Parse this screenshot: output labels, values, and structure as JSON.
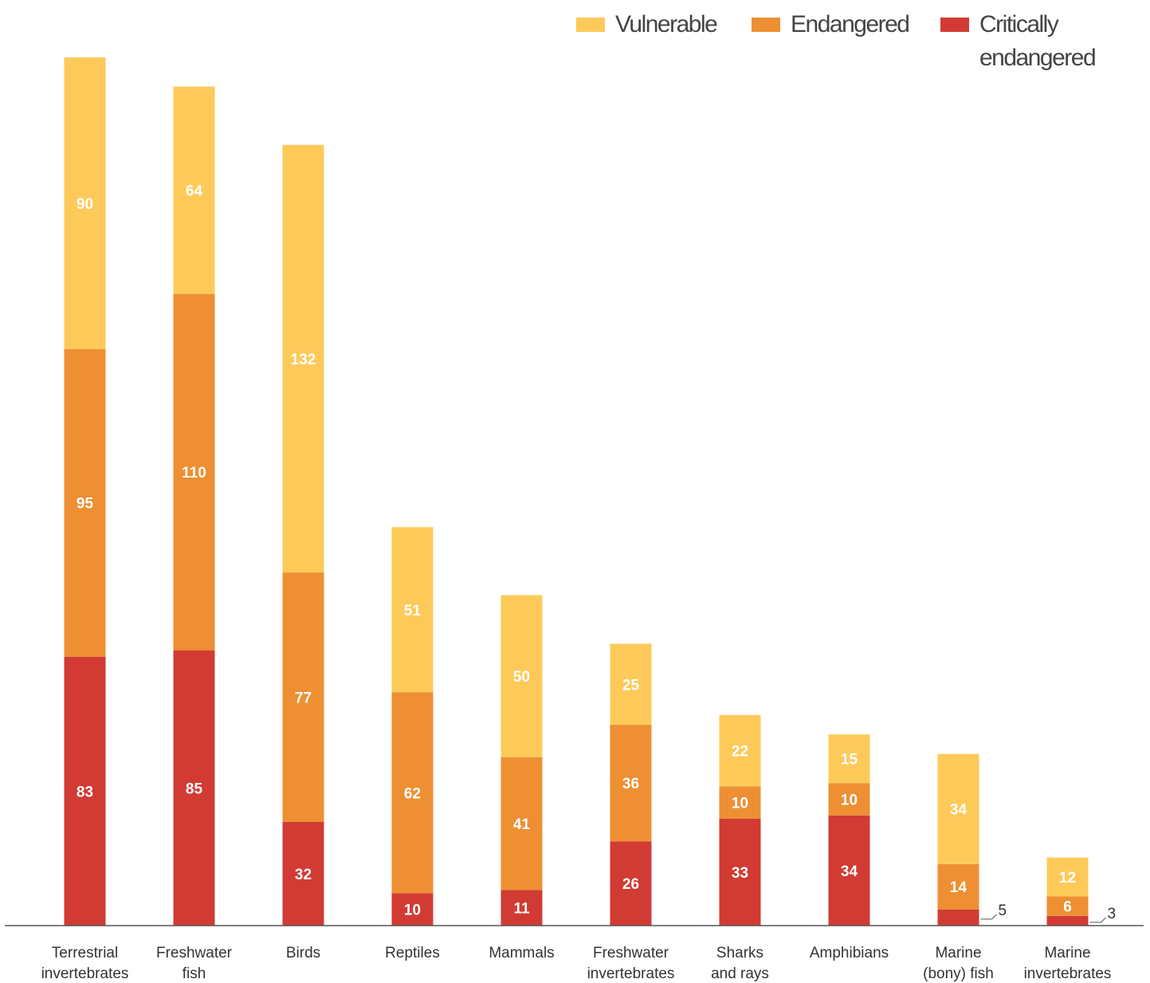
{
  "chart_data": {
    "type": "stacked-bar",
    "categories": [
      "Terrestrial\ninvertebrates",
      "Freshwater\nfish",
      "Birds",
      "Reptiles",
      "Mammals",
      "Freshwater\ninvertebrates",
      "Sharks\nand rays",
      "Amphibians",
      "Marine\n(bony) fish",
      "Marine\ninvertebrates"
    ],
    "series": [
      {
        "name": "Vulnerable",
        "color": "#fdca5a",
        "values": [
          90,
          64,
          132,
          51,
          50,
          25,
          22,
          15,
          34,
          12
        ]
      },
      {
        "name": "Endangered",
        "color": "#ee8f33",
        "values": [
          95,
          110,
          77,
          62,
          41,
          36,
          10,
          10,
          14,
          6
        ]
      },
      {
        "name": "Critically\nendangered",
        "color": "#d13b33",
        "values": [
          83,
          85,
          32,
          10,
          11,
          26,
          33,
          34,
          5,
          3
        ]
      }
    ],
    "ylim": [
      0,
      268
    ]
  }
}
